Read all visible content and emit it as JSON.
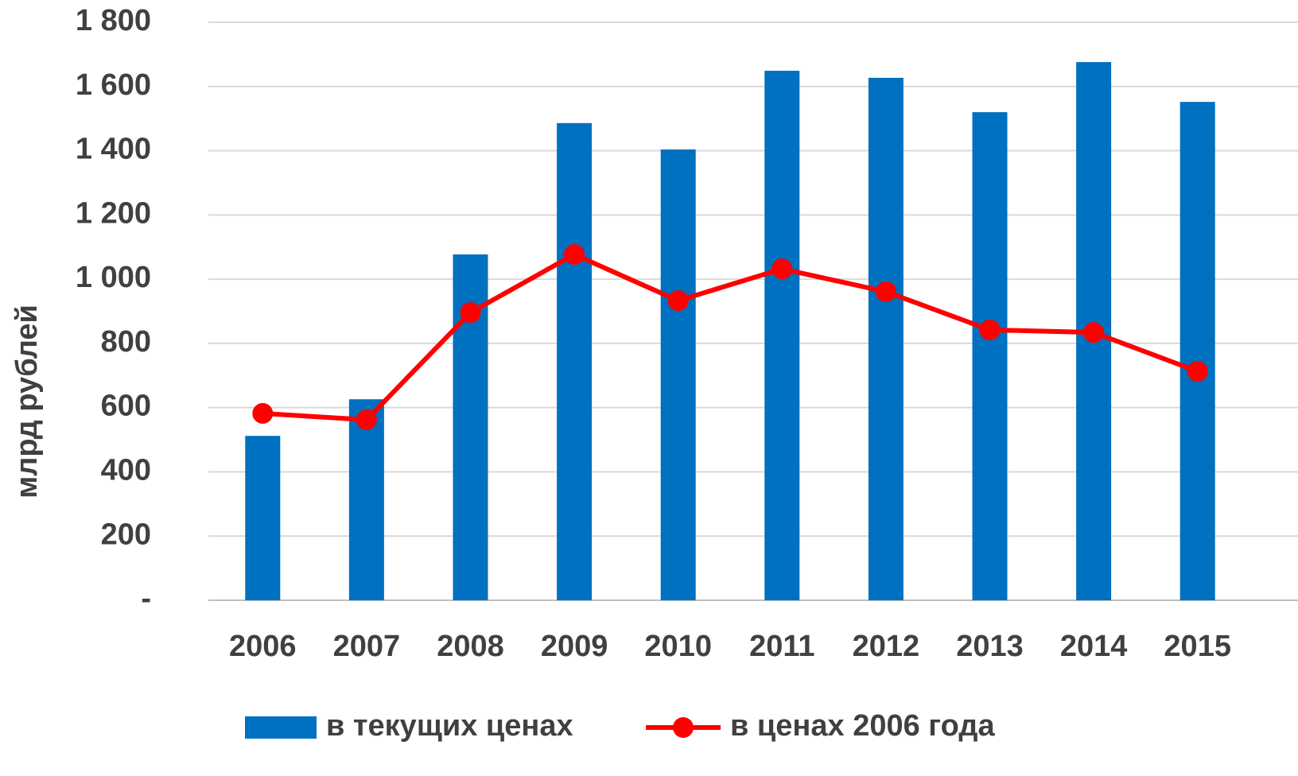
{
  "chart_data": {
    "type": "bar+line",
    "y_label": "млрд рублей",
    "categories": [
      "2006",
      "2007",
      "2008",
      "2009",
      "2010",
      "2011",
      "2012",
      "2013",
      "2014",
      "2015"
    ],
    "series": [
      {
        "name": "в текущих ценах",
        "type": "bar",
        "color": "#0070c0",
        "values": [
          512,
          626,
          1077,
          1486,
          1404,
          1649,
          1627,
          1520,
          1676,
          1552
        ]
      },
      {
        "name": "в ценах 2006 года",
        "type": "line",
        "color": "#ff0000",
        "values": [
          582,
          562,
          896,
          1077,
          933,
          1032,
          961,
          842,
          834,
          713
        ]
      }
    ],
    "ylim": [
      0,
      1800
    ],
    "yticks": [
      {
        "value": 0,
        "label": "-"
      },
      200,
      400,
      600,
      800,
      {
        "value": 1000,
        "label": "1 000"
      },
      {
        "value": 1200,
        "label": "1 200"
      },
      {
        "value": 1400,
        "label": "1 400"
      },
      {
        "value": 1600,
        "label": "1 600"
      },
      {
        "value": 1800,
        "label": "1 800"
      }
    ],
    "grid": true,
    "legend": "bottom"
  }
}
